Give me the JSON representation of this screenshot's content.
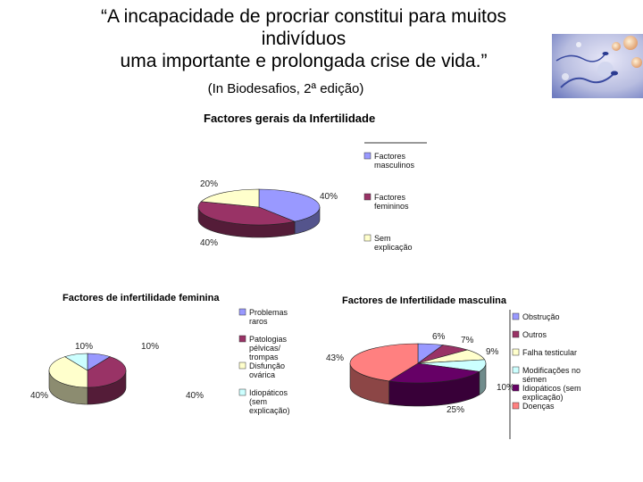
{
  "slide": {
    "quote_line1": "“A incapacidade de procriar constitui para muitos",
    "quote_line2": "indivíduos",
    "quote_line3": "uma importante e prolongada crise de vida.”",
    "source": "(In Biodesafios, 2ª edição)"
  },
  "chart_data": [
    {
      "type": "pie",
      "title": "Factores gerais da Infertilidade",
      "categories": [
        "Factores masculinos",
        "Factores femininos",
        "Sem explicação"
      ],
      "values": [
        40,
        40,
        20
      ],
      "value_labels": [
        "40%",
        "40%",
        "20%"
      ],
      "colors": [
        "#9999ff",
        "#993366",
        "#ffffcc"
      ],
      "legend_position": "right"
    },
    {
      "type": "pie",
      "title": "Factores de infertilidade feminina",
      "categories": [
        "Problemas raros",
        "Patologias pélvicas/ trompas",
        "Disfunção ovárica",
        "Idiopáticos (sem explicação)"
      ],
      "values": [
        10,
        40,
        40,
        10
      ],
      "value_labels": [
        "10%",
        "40%",
        "40%",
        "10%"
      ],
      "colors": [
        "#9999ff",
        "#993366",
        "#ffffcc",
        "#ccffff"
      ],
      "legend_position": "right"
    },
    {
      "type": "pie",
      "title": "Factores de Infertilidade masculina",
      "categories": [
        "Obstrução",
        "Outros",
        "Falha testicular",
        "Modificações no sémen",
        "Idiopáticos (sem explicação)",
        "Doenças"
      ],
      "values": [
        6,
        7,
        9,
        10,
        25,
        43
      ],
      "value_labels": [
        "6%",
        "7%",
        "9%",
        "10%",
        "25%",
        "43%"
      ],
      "colors": [
        "#9999ff",
        "#993366",
        "#ffffcc",
        "#ccffff",
        "#660066",
        "#ff8080"
      ],
      "legend_position": "right"
    }
  ]
}
